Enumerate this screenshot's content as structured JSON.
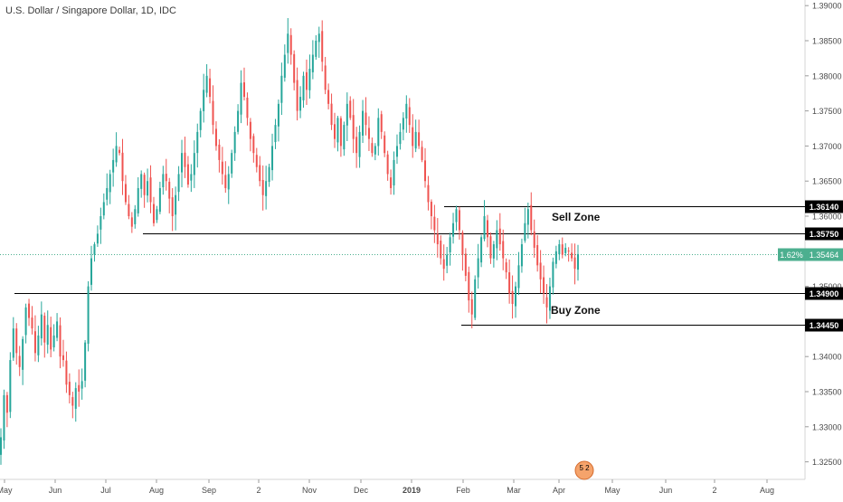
{
  "chart_data": {
    "type": "candlestick",
    "title": "U.S. Dollar / Singapore Dollar, 1D, IDC",
    "colors": {
      "up": "#26a69a",
      "down": "#ef5350",
      "level_line": "#000000",
      "current": "#4caf8f"
    },
    "y_axis": {
      "ylim": [
        1.3225,
        1.3908
      ],
      "ticks": [
        "1.39000",
        "1.38500",
        "1.38000",
        "1.37500",
        "1.37000",
        "1.36500",
        "1.36000",
        "1.35500",
        "1.35000",
        "1.34500",
        "1.34000",
        "1.33500",
        "1.33000",
        "1.32500"
      ]
    },
    "x_axis": {
      "ticks": [
        "May",
        "Jun",
        "Jul",
        "Aug",
        "Sep",
        "2",
        "Nov",
        "Dec",
        "2019",
        "Feb",
        "Mar",
        "Apr",
        "May",
        "Jun",
        "2",
        "Aug"
      ],
      "bold_ticks": [
        "2019"
      ]
    },
    "levels": [
      {
        "value": 1.3614,
        "label": "1.36140"
      },
      {
        "value": 1.3575,
        "label": "1.35750"
      },
      {
        "value": 1.349,
        "label": "1.34900"
      },
      {
        "value": 1.3445,
        "label": "1.34450"
      }
    ],
    "current_price": {
      "value": 1.35464,
      "label": "1.35464",
      "change": "1.62%"
    },
    "zones": [
      {
        "name": "Sell Zone",
        "value": 1.36
      },
      {
        "name": "Buy Zone",
        "value": 1.3455
      }
    ],
    "events_badge": {
      "text": "5 2"
    },
    "closes": [
      1.3285,
      1.3345,
      1.332,
      1.3395,
      1.344,
      1.3405,
      1.3385,
      1.3425,
      1.347,
      1.3455,
      1.344,
      1.3405,
      1.343,
      1.346,
      1.342,
      1.3445,
      1.341,
      1.343,
      1.345,
      1.34,
      1.3395,
      1.336,
      1.3345,
      1.333,
      1.3355,
      1.335,
      1.3365,
      1.342,
      1.35,
      1.354,
      1.356,
      1.3575,
      1.36,
      1.362,
      1.364,
      1.366,
      1.368,
      1.37,
      1.369,
      1.365,
      1.362,
      1.36,
      1.3585,
      1.361,
      1.364,
      1.366,
      1.363,
      1.365,
      1.362,
      1.359,
      1.361,
      1.364,
      1.366,
      1.365,
      1.3625,
      1.36,
      1.363,
      1.366,
      1.369,
      1.367,
      1.3645,
      1.366,
      1.369,
      1.372,
      1.375,
      1.378,
      1.38,
      1.377,
      1.373,
      1.37,
      1.368,
      1.366,
      1.364,
      1.366,
      1.369,
      1.372,
      1.375,
      1.379,
      1.377,
      1.374,
      1.371,
      1.369,
      1.367,
      1.365,
      1.363,
      1.365,
      1.367,
      1.37,
      1.373,
      1.376,
      1.38,
      1.383,
      1.386,
      1.383,
      1.379,
      1.375,
      1.377,
      1.38,
      1.378,
      1.381,
      1.383,
      1.385,
      1.386,
      1.382,
      1.378,
      1.376,
      1.373,
      1.371,
      1.374,
      1.37,
      1.373,
      1.376,
      1.374,
      1.371,
      1.369,
      1.372,
      1.375,
      1.373,
      1.371,
      1.369,
      1.37,
      1.374,
      1.372,
      1.369,
      1.366,
      1.364,
      1.368,
      1.37,
      1.372,
      1.374,
      1.376,
      1.373,
      1.37,
      1.372,
      1.37,
      1.368,
      1.365,
      1.362,
      1.36,
      1.358,
      1.356,
      1.354,
      1.3525,
      1.3545,
      1.357,
      1.359,
      1.361,
      1.358,
      1.3545,
      1.3515,
      1.348,
      1.346,
      1.351,
      1.354,
      1.357,
      1.36,
      1.357,
      1.354,
      1.356,
      1.358,
      1.356,
      1.354,
      1.352,
      1.349,
      1.3475,
      1.35,
      1.353,
      1.356,
      1.359,
      1.361,
      1.358,
      1.3555,
      1.353,
      1.351,
      1.349,
      1.347,
      1.35,
      1.3535,
      1.355,
      1.356,
      1.3545,
      1.3555,
      1.355,
      1.354,
      1.3525,
      1.3546
    ]
  }
}
